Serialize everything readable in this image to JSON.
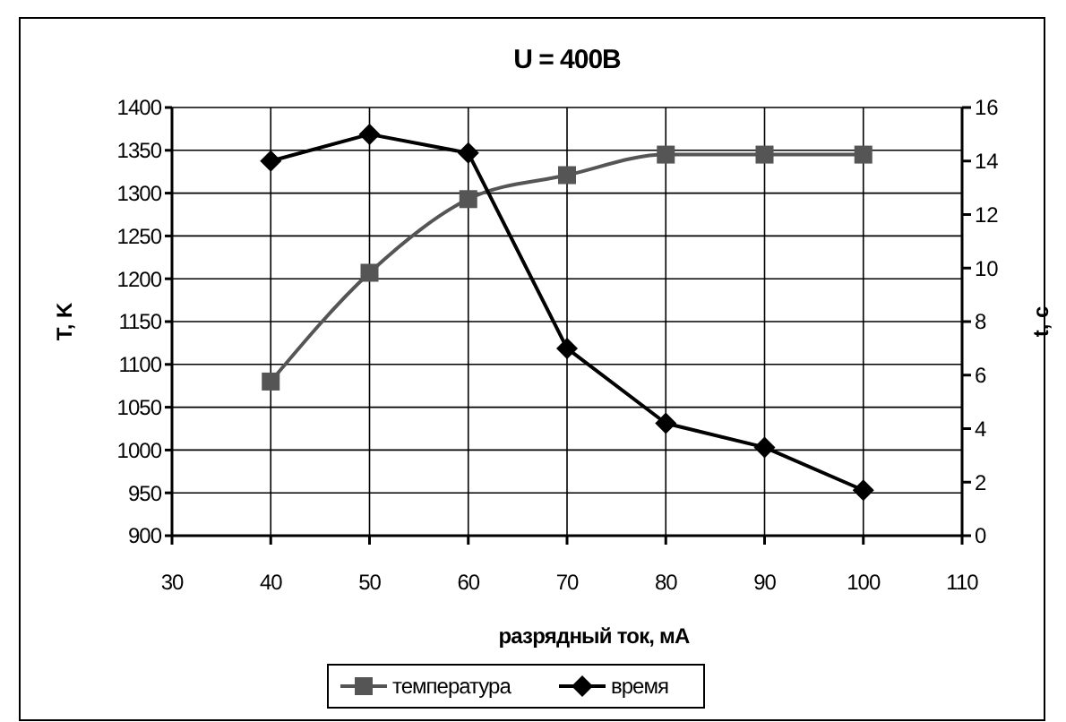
{
  "chart_data": {
    "type": "line",
    "title": "U = 400B",
    "xlabel": "разрядный ток, мА",
    "ylabel": "T, K",
    "y2label": "t, c",
    "x": [
      40,
      50,
      60,
      70,
      80,
      90,
      100
    ],
    "series": [
      {
        "name": "температура",
        "color": "#555555",
        "marker": "square",
        "values": [
          1080,
          1207,
          1293,
          1321,
          1345,
          1345,
          1345
        ]
      },
      {
        "name": "время",
        "color": "#000000",
        "marker": "diamond",
        "axis": "y2",
        "values": [
          14,
          15,
          14.3,
          7.0,
          4.2,
          3.3,
          1.7
        ]
      }
    ],
    "xlim": [
      30,
      110
    ],
    "xticks": [
      30,
      40,
      50,
      60,
      70,
      80,
      90,
      100,
      110
    ],
    "ylim": [
      900,
      1400
    ],
    "yticks": [
      900,
      950,
      1000,
      1050,
      1100,
      1150,
      1200,
      1250,
      1300,
      1350,
      1400
    ],
    "y2lim": [
      0,
      16
    ],
    "y2ticks": [
      0,
      2,
      4,
      6,
      8,
      10,
      12,
      14,
      16
    ],
    "grid": true,
    "legend": "bottom"
  }
}
